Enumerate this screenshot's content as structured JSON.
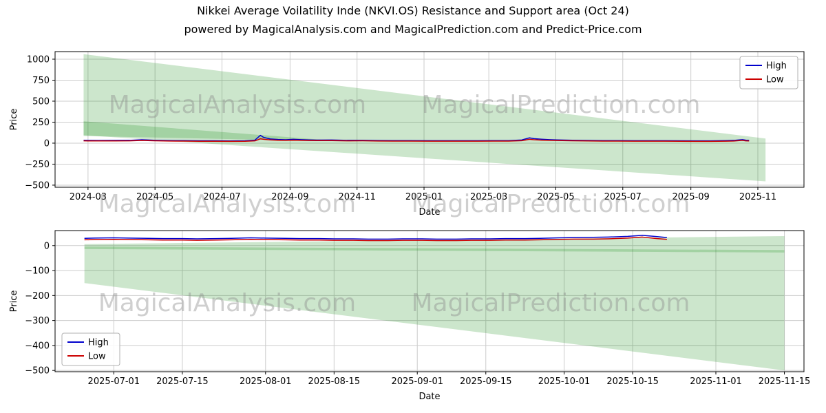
{
  "watermarks": {
    "left_text": "MagicalAnalysis.com",
    "right_text": "MagicalPrediction.com",
    "color": "#8c8c8c"
  },
  "colors": {
    "high": "#0000cc",
    "low": "#cc0000",
    "band": "#008000",
    "grid": "#cccccc"
  },
  "chart_data": [
    {
      "type": "line",
      "title": "Nikkei Average Voilatility Inde (NKVI.OS) Resistance and Support area (Oct 24)",
      "subtitle": "powered by MagicalAnalysis.com and MagicalPrediction.com and Predict-Price.com",
      "xlabel": "Date",
      "ylabel": "Price",
      "xlim": [
        "2024-01-31",
        "2025-12-13"
      ],
      "ylim": [
        -525,
        1090
      ],
      "xticks": [
        "2024-03",
        "2024-05",
        "2024-07",
        "2024-09",
        "2024-11",
        "2025-01",
        "2025-03",
        "2025-05",
        "2025-07",
        "2025-09",
        "2025-11"
      ],
      "yticks": [
        1000,
        750,
        500,
        250,
        0,
        -250,
        -500
      ],
      "grid": true,
      "legend": {
        "loc": "upper right",
        "entries": [
          "High",
          "Low"
        ]
      },
      "bands": [
        {
          "color": "#008000",
          "opacity": 0.2,
          "points": [
            [
              "2024-02-26",
              1060
            ],
            [
              "2025-11-08",
              55
            ],
            [
              "2025-11-08",
              -455
            ],
            [
              "2024-02-26",
              95
            ]
          ]
        },
        {
          "color": "#008000",
          "opacity": 0.2,
          "points": [
            [
              "2024-02-26",
              260
            ],
            [
              "2024-10-01",
              40
            ],
            [
              "2024-10-01",
              25
            ],
            [
              "2024-02-26",
              85
            ]
          ]
        }
      ],
      "x": [
        "2024-02-26",
        "2024-03-11",
        "2024-03-25",
        "2024-04-08",
        "2024-04-19",
        "2024-04-30",
        "2024-05-13",
        "2024-05-27",
        "2024-06-10",
        "2024-06-24",
        "2024-07-08",
        "2024-07-22",
        "2024-07-31",
        "2024-08-05",
        "2024-08-08",
        "2024-08-14",
        "2024-08-21",
        "2024-08-28",
        "2024-09-04",
        "2024-09-11",
        "2024-09-18",
        "2024-09-25",
        "2024-10-09",
        "2024-10-23",
        "2024-11-06",
        "2024-11-20",
        "2024-12-04",
        "2024-12-18",
        "2025-01-08",
        "2025-01-22",
        "2025-02-05",
        "2025-02-19",
        "2025-03-05",
        "2025-03-19",
        "2025-03-31",
        "2025-04-07",
        "2025-04-11",
        "2025-04-18",
        "2025-04-25",
        "2025-05-02",
        "2025-05-16",
        "2025-05-30",
        "2025-06-13",
        "2025-06-27",
        "2025-07-11",
        "2025-07-25",
        "2025-08-08",
        "2025-08-22",
        "2025-09-05",
        "2025-09-19",
        "2025-10-03",
        "2025-10-10",
        "2025-10-15",
        "2025-10-18",
        "2025-10-21",
        "2025-10-24"
      ],
      "series": [
        {
          "name": "High",
          "color": "#0000cc",
          "values": [
            34,
            32,
            33,
            34,
            41,
            35,
            31,
            30,
            28,
            28,
            26,
            28,
            36,
            93,
            68,
            50,
            44,
            41,
            46,
            42,
            39,
            37,
            38,
            34,
            35,
            31,
            30,
            30,
            29,
            29,
            29,
            29,
            30,
            30,
            38,
            63,
            54,
            47,
            42,
            39,
            35,
            32,
            30,
            30,
            29,
            29,
            29,
            28,
            27,
            27,
            30,
            33,
            39,
            42,
            36,
            33
          ]
        },
        {
          "name": "Low",
          "color": "#cc0000",
          "values": [
            27,
            26,
            26,
            27,
            32,
            28,
            25,
            24,
            22,
            22,
            21,
            22,
            27,
            52,
            46,
            39,
            35,
            33,
            36,
            33,
            31,
            30,
            30,
            27,
            28,
            25,
            24,
            24,
            23,
            23,
            23,
            23,
            24,
            24,
            29,
            46,
            41,
            36,
            33,
            31,
            28,
            26,
            24,
            24,
            23,
            23,
            23,
            22,
            21,
            21,
            23,
            25,
            30,
            33,
            27,
            26
          ]
        }
      ]
    },
    {
      "type": "line",
      "title": "",
      "xlabel": "Date",
      "ylabel": "Price",
      "xlim": [
        "2025-06-19",
        "2025-11-19"
      ],
      "ylim": [
        -505,
        60
      ],
      "xticks": [
        "2025-07-01",
        "2025-07-15",
        "2025-08-01",
        "2025-08-15",
        "2025-09-01",
        "2025-09-15",
        "2025-10-01",
        "2025-10-15",
        "2025-11-01",
        "2025-11-15"
      ],
      "yticks": [
        0,
        -100,
        -200,
        -300,
        -400,
        -500
      ],
      "grid": true,
      "legend": {
        "loc": "lower left",
        "entries": [
          "High",
          "Low"
        ]
      },
      "bands": [
        {
          "color": "#008000",
          "opacity": 0.2,
          "points": [
            [
              "2025-06-25",
              6
            ],
            [
              "2025-11-15",
              38
            ],
            [
              "2025-11-15",
              -28
            ],
            [
              "2025-06-25",
              -14
            ]
          ]
        },
        {
          "color": "#008000",
          "opacity": 0.2,
          "points": [
            [
              "2025-06-25",
              -4
            ],
            [
              "2025-11-15",
              -18
            ],
            [
              "2025-11-15",
              -500
            ],
            [
              "2025-06-25",
              -150
            ]
          ]
        }
      ],
      "x": [
        "2025-06-25",
        "2025-06-27",
        "2025-07-01",
        "2025-07-04",
        "2025-07-08",
        "2025-07-11",
        "2025-07-15",
        "2025-07-18",
        "2025-07-22",
        "2025-07-25",
        "2025-07-29",
        "2025-08-01",
        "2025-08-05",
        "2025-08-08",
        "2025-08-12",
        "2025-08-15",
        "2025-08-19",
        "2025-08-22",
        "2025-08-26",
        "2025-08-29",
        "2025-09-02",
        "2025-09-05",
        "2025-09-09",
        "2025-09-12",
        "2025-09-16",
        "2025-09-19",
        "2025-09-23",
        "2025-09-26",
        "2025-09-30",
        "2025-10-03",
        "2025-10-07",
        "2025-10-10",
        "2025-10-14",
        "2025-10-17",
        "2025-10-20",
        "2025-10-22"
      ],
      "series": [
        {
          "name": "High",
          "color": "#0000cc",
          "values": [
            29,
            30,
            31,
            30,
            29,
            28,
            28,
            27,
            28,
            29,
            31,
            30,
            29,
            28,
            28,
            27,
            27,
            26,
            26,
            27,
            27,
            26,
            26,
            27,
            27,
            28,
            28,
            29,
            31,
            32,
            33,
            34,
            37,
            41,
            36,
            32
          ]
        },
        {
          "name": "Low",
          "color": "#cc0000",
          "values": [
            23,
            24,
            25,
            24,
            23,
            22,
            22,
            21,
            22,
            23,
            25,
            24,
            23,
            22,
            22,
            21,
            21,
            20,
            20,
            21,
            21,
            20,
            20,
            21,
            21,
            22,
            22,
            23,
            25,
            26,
            26,
            27,
            30,
            34,
            28,
            25
          ]
        }
      ]
    }
  ]
}
